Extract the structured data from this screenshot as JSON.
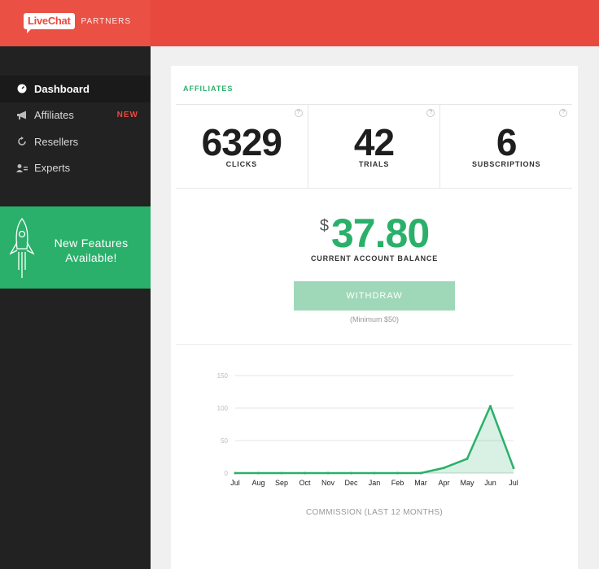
{
  "header": {
    "logo_text": "LiveChat",
    "logo_suffix": "PARTNERS"
  },
  "sidebar": {
    "items": [
      {
        "label": "Dashboard",
        "icon": "dashboard-icon",
        "active": true
      },
      {
        "label": "Affiliates",
        "icon": "megaphone-icon",
        "badge": "NEW"
      },
      {
        "label": "Resellers",
        "icon": "refresh-icon"
      },
      {
        "label": "Experts",
        "icon": "expert-icon"
      }
    ],
    "promo": {
      "icon": "rocket-icon",
      "line1": "New Features",
      "line2": "Available!"
    }
  },
  "main": {
    "section_title": "AFFILIATES",
    "stats": [
      {
        "value": "6329",
        "label": "CLICKS",
        "help": "?"
      },
      {
        "value": "42",
        "label": "TRIALS",
        "help": "?"
      },
      {
        "value": "6",
        "label": "SUBSCRIPTIONS",
        "help": "?"
      }
    ],
    "balance": {
      "currency": "$",
      "amount": "37.80",
      "label": "CURRENT ACCOUNT BALANCE"
    },
    "withdraw_label": "WITHDRAW",
    "minimum_note": "(Minimum $50)",
    "accent_color": "#2ab06a"
  },
  "chart_data": {
    "type": "area",
    "categories": [
      "Jul",
      "Aug",
      "Sep",
      "Oct",
      "Nov",
      "Dec",
      "Jan",
      "Feb",
      "Mar",
      "Apr",
      "May",
      "Jun",
      "Jul"
    ],
    "values": [
      0,
      0,
      0,
      0,
      0,
      0,
      0,
      0,
      0,
      8,
      22,
      103,
      8
    ],
    "yticks": [
      0,
      50,
      100,
      150
    ],
    "ylim": [
      0,
      150
    ],
    "caption": "COMMISSION (LAST 12 MONTHS)",
    "grid": true,
    "color": "#2ab06a"
  }
}
